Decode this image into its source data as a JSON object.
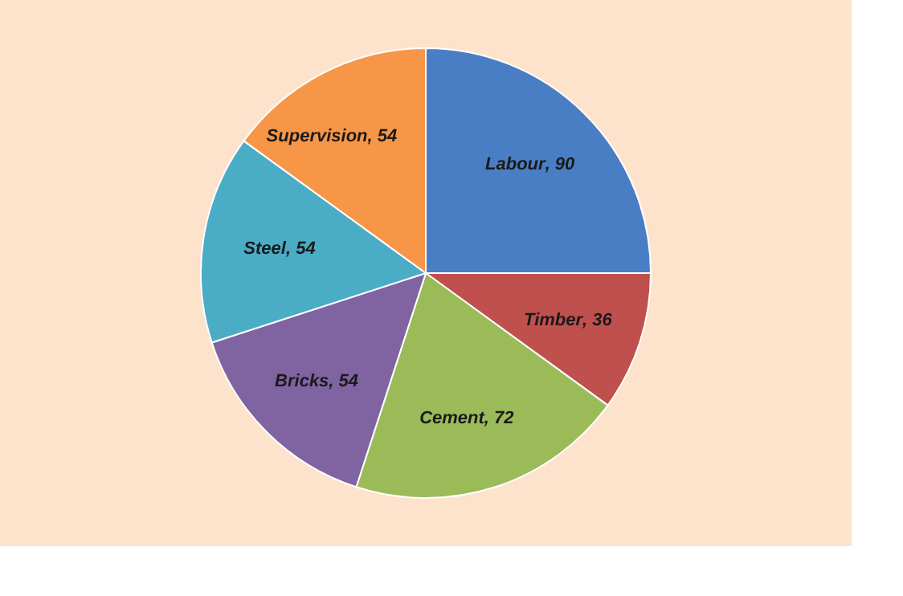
{
  "chart_data": {
    "type": "pie",
    "categories": [
      "Labour",
      "Timber",
      "Cement",
      "Bricks",
      "Steel",
      "Supervision"
    ],
    "values": [
      90,
      36,
      72,
      54,
      54,
      54
    ],
    "colors": [
      "#4a7ec4",
      "#c0504d",
      "#9bbb59",
      "#8064a2",
      "#4bacc6",
      "#f79646"
    ],
    "value_labels": [
      ", 90",
      ", 36",
      ", 72",
      ", 54",
      ", 54",
      ", 54"
    ],
    "legend": false
  }
}
